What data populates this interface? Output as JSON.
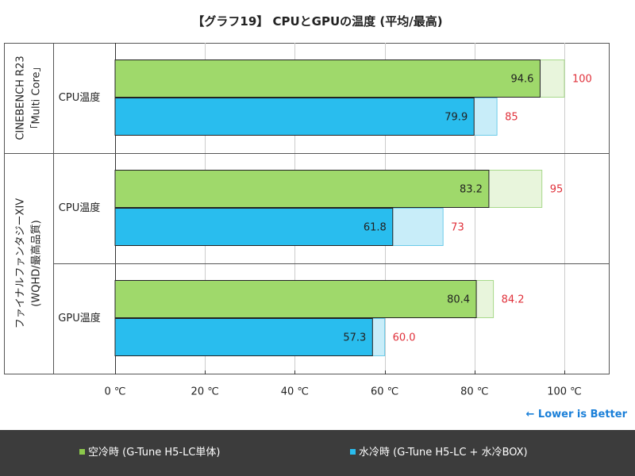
{
  "title": "【グラフ19】 CPUとGPUの温度 (平均/最高)",
  "note": "← Lower is Better",
  "colors": {
    "air": "#9fd96b",
    "air_light": "#e8f5dc",
    "water": "#29bdee",
    "water_light": "#c8edf9",
    "max_label": "#e0303a",
    "border": "#555555"
  },
  "legend": [
    {
      "name": "空冷時 (G-Tune H5-LC単体)",
      "color": "#8cc84b"
    },
    {
      "name": "水冷時 (G-Tune H5-LC + 水冷BOX)",
      "color": "#29bdee"
    }
  ],
  "chart_data": {
    "type": "bar",
    "orientation": "horizontal",
    "title": "【グラフ19】 CPUとGPUの温度 (平均/最高)",
    "xlim": [
      0,
      100
    ],
    "x_ticks": [
      "0 ℃",
      "20 ℃",
      "40 ℃",
      "60 ℃",
      "80 ℃",
      "100 ℃"
    ],
    "groups": [
      {
        "label_lines": [
          "CINEBENCH R23",
          "「Multi Core」"
        ],
        "categories": [
          {
            "label": "CPU温度",
            "bars": [
              {
                "series": "空冷時 (G-Tune H5-LC単体)",
                "avg": 94.6,
                "avg_label": "94.6",
                "max": 100,
                "max_label": "100"
              },
              {
                "series": "水冷時 (G-Tune H5-LC + 水冷BOX)",
                "avg": 79.9,
                "avg_label": "79.9",
                "max": 85,
                "max_label": "85"
              }
            ]
          }
        ]
      },
      {
        "label_lines": [
          "ファイナルファンタジーXIV",
          "(WQHD/最高品質)"
        ],
        "categories": [
          {
            "label": "CPU温度",
            "bars": [
              {
                "series": "空冷時 (G-Tune H5-LC単体)",
                "avg": 83.2,
                "avg_label": "83.2",
                "max": 95,
                "max_label": "95"
              },
              {
                "series": "水冷時 (G-Tune H5-LC + 水冷BOX)",
                "avg": 61.8,
                "avg_label": "61.8",
                "max": 73,
                "max_label": "73"
              }
            ]
          },
          {
            "label": "GPU温度",
            "bars": [
              {
                "series": "空冷時 (G-Tune H5-LC単体)",
                "avg": 80.4,
                "avg_label": "80.4",
                "max": 84.2,
                "max_label": "84.2"
              },
              {
                "series": "水冷時 (G-Tune H5-LC + 水冷BOX)",
                "avg": 57.3,
                "avg_label": "57.3",
                "max": 60.0,
                "max_label": "60.0"
              }
            ]
          }
        ]
      }
    ]
  }
}
